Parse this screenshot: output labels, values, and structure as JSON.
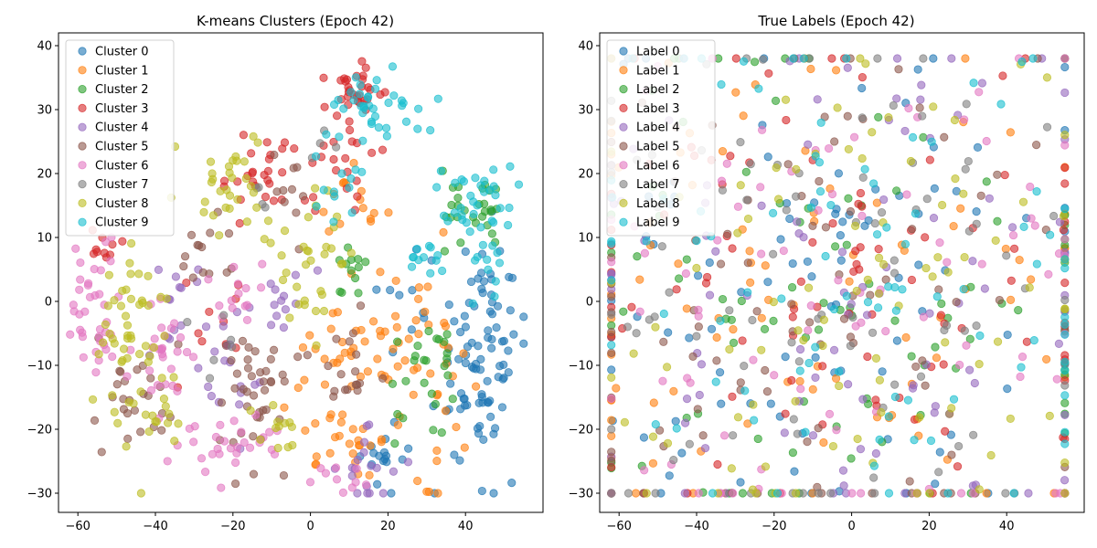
{
  "figure": {
    "type": "scatter"
  },
  "chart_data": [
    {
      "type": "scatter",
      "title": "K-means Clusters (Epoch 42)",
      "xlabel": "",
      "ylabel": "",
      "xlim": [
        -65,
        60
      ],
      "ylim": [
        -33,
        42
      ],
      "xticks": [
        -60,
        -40,
        -20,
        0,
        20,
        40
      ],
      "yticks": [
        -30,
        -20,
        -10,
        0,
        10,
        20,
        30,
        40
      ],
      "grid": false,
      "legend": "upper-left",
      "series": [
        {
          "name": "Cluster 0",
          "color": "#1f77b4",
          "regions": [
            [
              44,
              -8,
              6,
              9,
              90
            ],
            [
              20,
              -25,
              3,
              3,
              16
            ],
            [
              25,
              0,
              4,
              4,
              10
            ]
          ]
        },
        {
          "name": "Cluster 1",
          "color": "#ff7f0e",
          "regions": [
            [
              25,
              -8,
              9,
              8,
              60
            ],
            [
              10,
              14,
              3,
              3,
              14
            ],
            [
              3,
              -8,
              5,
              3,
              16
            ],
            [
              10,
              -22,
              8,
              4,
              26
            ]
          ]
        },
        {
          "name": "Cluster 2",
          "color": "#2ca02c",
          "regions": [
            [
              41,
              14,
              5,
              3,
              28
            ],
            [
              11,
              4,
              2,
              2,
              12
            ],
            [
              28,
              -13,
              4,
              5,
              18
            ],
            [
              35,
              -8,
              3,
              2,
              8
            ]
          ]
        },
        {
          "name": "Cluster 3",
          "color": "#d62728",
          "regions": [
            [
              13,
              34,
              6,
              2,
              26
            ],
            [
              -12,
              20,
              7,
              3,
              28
            ],
            [
              10,
              23,
              4,
              5,
              24
            ],
            [
              -55,
              8,
              3,
              2,
              10
            ],
            [
              -25,
              -2,
              5,
              5,
              10
            ]
          ]
        },
        {
          "name": "Cluster 4",
          "color": "#9467bd",
          "regions": [
            [
              -20,
              -10,
              4,
              5,
              16
            ],
            [
              -8,
              0,
              5,
              3,
              14
            ],
            [
              15,
              -26,
              4,
              3,
              18
            ],
            [
              -35,
              -2,
              4,
              4,
              14
            ]
          ]
        },
        {
          "name": "Cluster 5",
          "color": "#8c564b",
          "regions": [
            [
              -45,
              -15,
              5,
              5,
              26
            ],
            [
              -15,
              -14,
              5,
              6,
              40
            ],
            [
              -28,
              8,
              4,
              4,
              14
            ],
            [
              -5,
              17,
              4,
              3,
              10
            ],
            [
              8,
              -10,
              5,
              5,
              18
            ]
          ]
        },
        {
          "name": "Cluster 6",
          "color": "#e377c2",
          "regions": [
            [
              -55,
              -2,
              4,
              6,
              38
            ],
            [
              -37,
              -10,
              4,
              5,
              28
            ],
            [
              -28,
              -23,
              5,
              3,
              16
            ],
            [
              -15,
              -21,
              4,
              2,
              12
            ],
            [
              10,
              -27,
              5,
              2,
              10
            ],
            [
              -18,
              2,
              4,
              3,
              14
            ]
          ]
        },
        {
          "name": "Cluster 7",
          "color": "#7f7f7f",
          "regions": [
            [
              -23,
              -6,
              3,
              3,
              6
            ],
            [
              3,
              24,
              2,
              2,
              4
            ],
            [
              -13,
              16,
              2,
              2,
              4
            ]
          ]
        },
        {
          "name": "Cluster 8",
          "color": "#bcbd22",
          "regions": [
            [
              -45,
              -4,
              5,
              8,
              50
            ],
            [
              -20,
              18,
              5,
              4,
              30
            ],
            [
              0,
              8,
              5,
              6,
              34
            ],
            [
              -40,
              -20,
              3,
              3,
              12
            ],
            [
              -8,
              -22,
              3,
              3,
              12
            ]
          ]
        },
        {
          "name": "Cluster 9",
          "color": "#17becf",
          "regions": [
            [
              18,
              31,
              6,
              3,
              38
            ],
            [
              44,
              16,
              5,
              4,
              36
            ],
            [
              8,
              18,
              4,
              3,
              12
            ],
            [
              30,
              6,
              3,
              3,
              12
            ],
            [
              45,
              4,
              2,
              3,
              8
            ]
          ]
        }
      ]
    },
    {
      "type": "scatter",
      "title": "True Labels (Epoch 42)",
      "xlabel": "",
      "ylabel": "",
      "xlim": [
        -65,
        60
      ],
      "ylim": [
        -33,
        42
      ],
      "xticks": [
        -60,
        -40,
        -20,
        0,
        20,
        40
      ],
      "yticks": [
        -30,
        -20,
        -10,
        0,
        10,
        20,
        30,
        40
      ],
      "grid": false,
      "legend": "upper-left",
      "series": [
        {
          "name": "Label 0",
          "color": "#1f77b4",
          "regions": [
            [
              -5,
              0,
              40,
              22,
              95
            ]
          ]
        },
        {
          "name": "Label 1",
          "color": "#ff7f0e",
          "regions": [
            [
              -5,
              0,
              40,
              22,
              95
            ]
          ]
        },
        {
          "name": "Label 2",
          "color": "#2ca02c",
          "regions": [
            [
              -5,
              0,
              40,
              22,
              95
            ]
          ]
        },
        {
          "name": "Label 3",
          "color": "#d62728",
          "regions": [
            [
              -5,
              0,
              40,
              22,
              95
            ]
          ]
        },
        {
          "name": "Label 4",
          "color": "#9467bd",
          "regions": [
            [
              -5,
              0,
              40,
              22,
              95
            ]
          ]
        },
        {
          "name": "Label 5",
          "color": "#8c564b",
          "regions": [
            [
              -5,
              0,
              40,
              22,
              95
            ]
          ]
        },
        {
          "name": "Label 6",
          "color": "#e377c2",
          "regions": [
            [
              -5,
              0,
              40,
              22,
              95
            ]
          ]
        },
        {
          "name": "Label 7",
          "color": "#7f7f7f",
          "regions": [
            [
              -5,
              0,
              40,
              22,
              95
            ]
          ]
        },
        {
          "name": "Label 8",
          "color": "#bcbd22",
          "regions": [
            [
              -5,
              0,
              40,
              22,
              95
            ]
          ]
        },
        {
          "name": "Label 9",
          "color": "#17becf",
          "regions": [
            [
              -5,
              0,
              40,
              22,
              95
            ]
          ]
        }
      ]
    }
  ]
}
